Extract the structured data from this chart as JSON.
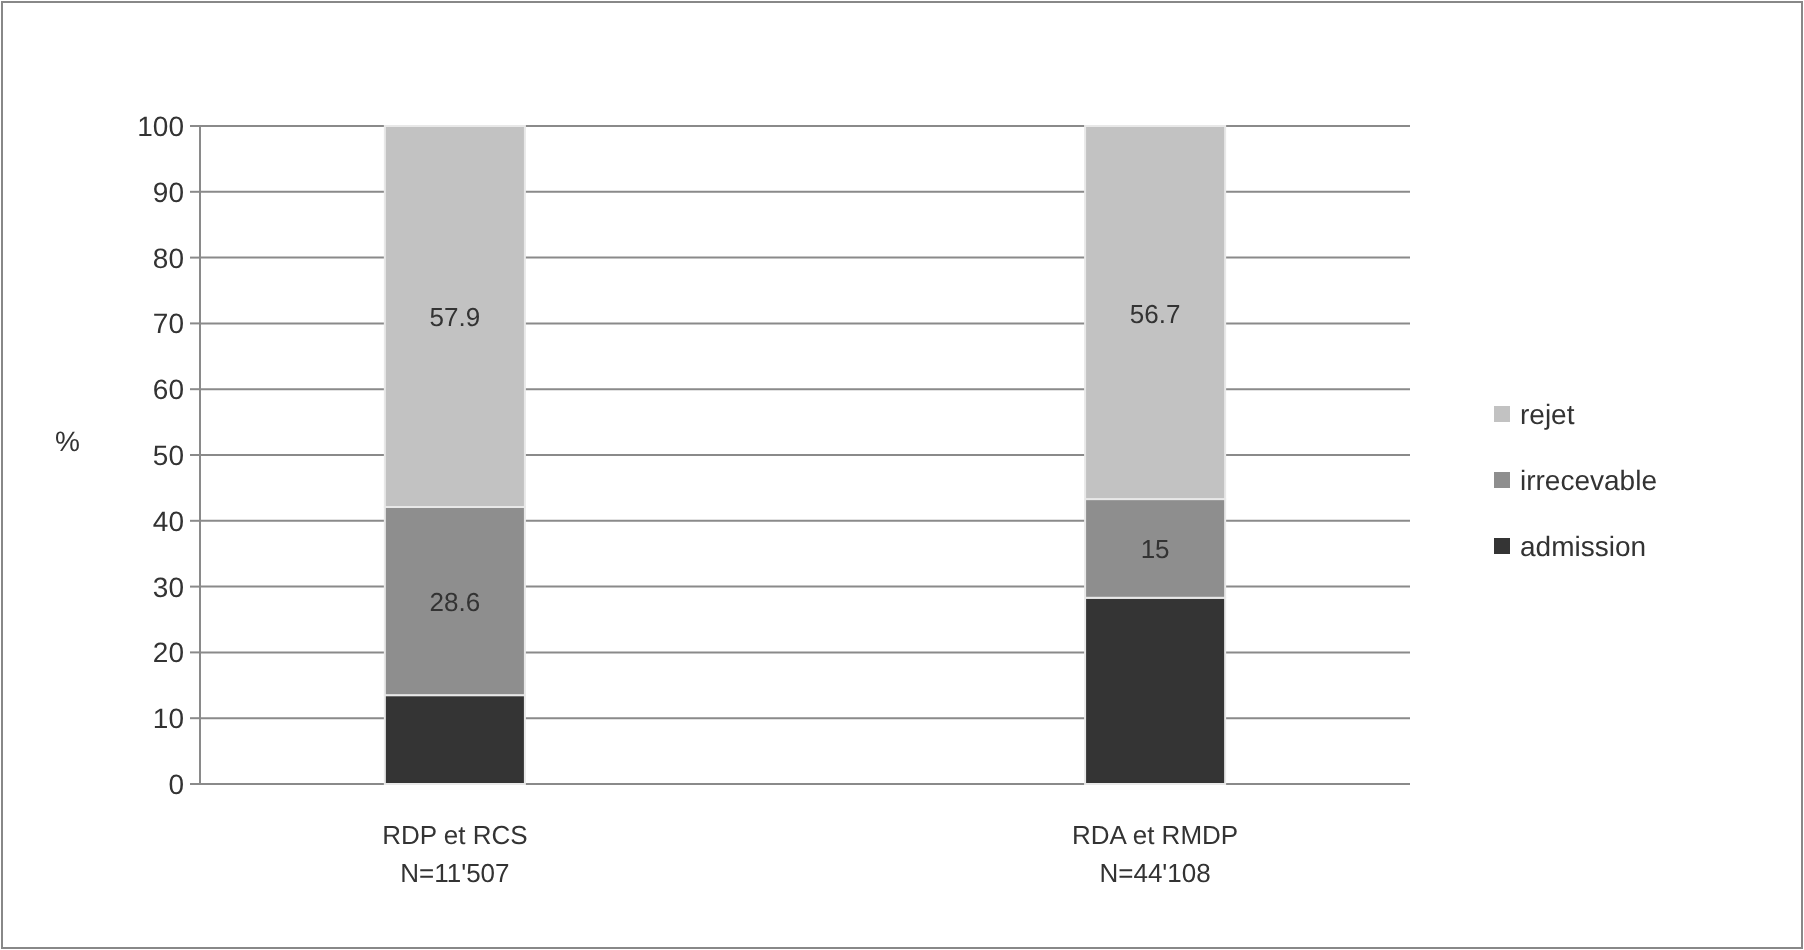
{
  "chart_data": {
    "type": "bar",
    "stacked": true,
    "categories": [
      "RDP et RCS\nN=11'507",
      "RDA et RMDP\nN=44'108"
    ],
    "ylabel": "%",
    "ylim": [
      0,
      100
    ],
    "yticks": [
      0,
      10,
      20,
      30,
      40,
      50,
      60,
      70,
      80,
      90,
      100
    ],
    "grid": "y",
    "legend": "right",
    "series": [
      {
        "name": "admission",
        "color": "#343434",
        "values": [
          13.5,
          28.3
        ],
        "value_labels": [
          null,
          null
        ]
      },
      {
        "name": "irrecevable",
        "color": "#8e8e8e",
        "values": [
          28.6,
          15
        ],
        "value_labels": [
          "28.6",
          "15"
        ]
      },
      {
        "name": "rejet",
        "color": "#c2c2c2",
        "values": [
          57.9,
          56.7
        ],
        "value_labels": [
          "57.9",
          "56.7"
        ]
      }
    ]
  }
}
